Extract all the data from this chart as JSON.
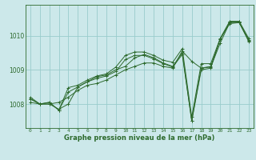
{
  "title": "Graphe pression niveau de la mer (hPa)",
  "bg_color": "#cce8ea",
  "grid_color": "#99cccc",
  "line_color": "#2d6a2d",
  "xlim": [
    -0.5,
    23.5
  ],
  "ylim": [
    1007.3,
    1010.9
  ],
  "yticks": [
    1008,
    1009,
    1010
  ],
  "xticks": [
    0,
    1,
    2,
    3,
    4,
    5,
    6,
    7,
    8,
    9,
    10,
    11,
    12,
    13,
    14,
    15,
    16,
    17,
    18,
    19,
    20,
    21,
    22,
    23
  ],
  "series": [
    [
      1008.2,
      1008.0,
      1008.0,
      1007.85,
      1008.0,
      1008.5,
      1008.65,
      1008.8,
      1008.85,
      1009.0,
      1009.1,
      1009.35,
      1009.45,
      1009.35,
      1009.2,
      1009.1,
      1009.5,
      1007.5,
      1009.0,
      1009.05,
      1009.9,
      1010.4,
      1010.4,
      1009.85
    ],
    [
      1008.05,
      1008.0,
      1008.0,
      1008.05,
      1008.2,
      1008.4,
      1008.55,
      1008.6,
      1008.7,
      1008.85,
      1009.0,
      1009.1,
      1009.2,
      1009.2,
      1009.1,
      1009.05,
      1009.55,
      1009.25,
      1009.05,
      1009.1,
      1009.9,
      1010.35,
      1010.38,
      1009.88
    ],
    [
      1008.15,
      1008.0,
      1008.05,
      1007.82,
      1008.35,
      1008.5,
      1008.65,
      1008.75,
      1008.82,
      1008.95,
      1009.3,
      1009.42,
      1009.42,
      1009.32,
      1009.18,
      1009.08,
      1009.45,
      1007.52,
      1009.05,
      1009.08,
      1009.78,
      1010.38,
      1010.38,
      1009.83
    ],
    [
      1008.15,
      1008.0,
      1008.05,
      1007.82,
      1008.48,
      1008.55,
      1008.7,
      1008.82,
      1008.88,
      1009.08,
      1009.42,
      1009.52,
      1009.52,
      1009.42,
      1009.28,
      1009.22,
      1009.62,
      1007.62,
      1009.18,
      1009.18,
      1009.92,
      1010.42,
      1010.42,
      1009.92
    ]
  ]
}
